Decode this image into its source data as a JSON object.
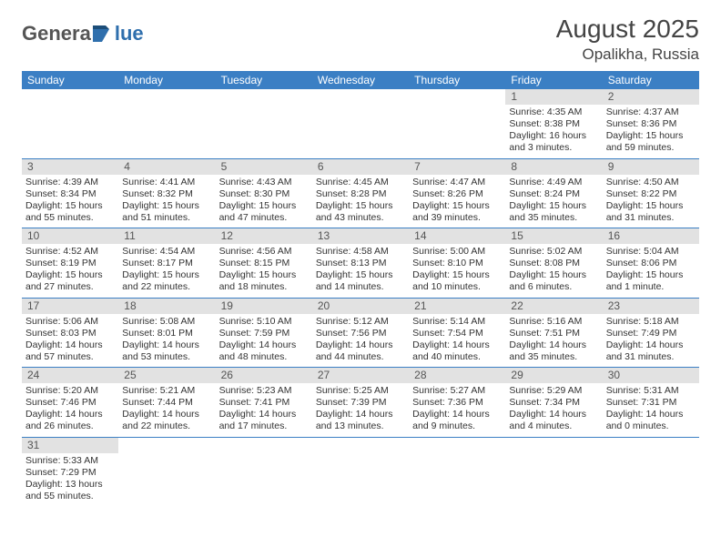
{
  "logo": {
    "text1": "Genera",
    "text2": "lue",
    "shape_color": "#2f6fad"
  },
  "title": {
    "month": "August 2025",
    "location": "Opalikha, Russia"
  },
  "colors": {
    "header_bg": "#3b7fc4",
    "header_fg": "#ffffff",
    "daynum_bg": "#e2e2e2",
    "daynum_fg": "#555555",
    "border": "#3b7fc4",
    "text": "#333333"
  },
  "weekdays": [
    "Sunday",
    "Monday",
    "Tuesday",
    "Wednesday",
    "Thursday",
    "Friday",
    "Saturday"
  ],
  "weeks": [
    [
      null,
      null,
      null,
      null,
      null,
      {
        "n": "1",
        "sunrise": "Sunrise: 4:35 AM",
        "sunset": "Sunset: 8:38 PM",
        "daylight": "Daylight: 16 hours and 3 minutes."
      },
      {
        "n": "2",
        "sunrise": "Sunrise: 4:37 AM",
        "sunset": "Sunset: 8:36 PM",
        "daylight": "Daylight: 15 hours and 59 minutes."
      }
    ],
    [
      {
        "n": "3",
        "sunrise": "Sunrise: 4:39 AM",
        "sunset": "Sunset: 8:34 PM",
        "daylight": "Daylight: 15 hours and 55 minutes."
      },
      {
        "n": "4",
        "sunrise": "Sunrise: 4:41 AM",
        "sunset": "Sunset: 8:32 PM",
        "daylight": "Daylight: 15 hours and 51 minutes."
      },
      {
        "n": "5",
        "sunrise": "Sunrise: 4:43 AM",
        "sunset": "Sunset: 8:30 PM",
        "daylight": "Daylight: 15 hours and 47 minutes."
      },
      {
        "n": "6",
        "sunrise": "Sunrise: 4:45 AM",
        "sunset": "Sunset: 8:28 PM",
        "daylight": "Daylight: 15 hours and 43 minutes."
      },
      {
        "n": "7",
        "sunrise": "Sunrise: 4:47 AM",
        "sunset": "Sunset: 8:26 PM",
        "daylight": "Daylight: 15 hours and 39 minutes."
      },
      {
        "n": "8",
        "sunrise": "Sunrise: 4:49 AM",
        "sunset": "Sunset: 8:24 PM",
        "daylight": "Daylight: 15 hours and 35 minutes."
      },
      {
        "n": "9",
        "sunrise": "Sunrise: 4:50 AM",
        "sunset": "Sunset: 8:22 PM",
        "daylight": "Daylight: 15 hours and 31 minutes."
      }
    ],
    [
      {
        "n": "10",
        "sunrise": "Sunrise: 4:52 AM",
        "sunset": "Sunset: 8:19 PM",
        "daylight": "Daylight: 15 hours and 27 minutes."
      },
      {
        "n": "11",
        "sunrise": "Sunrise: 4:54 AM",
        "sunset": "Sunset: 8:17 PM",
        "daylight": "Daylight: 15 hours and 22 minutes."
      },
      {
        "n": "12",
        "sunrise": "Sunrise: 4:56 AM",
        "sunset": "Sunset: 8:15 PM",
        "daylight": "Daylight: 15 hours and 18 minutes."
      },
      {
        "n": "13",
        "sunrise": "Sunrise: 4:58 AM",
        "sunset": "Sunset: 8:13 PM",
        "daylight": "Daylight: 15 hours and 14 minutes."
      },
      {
        "n": "14",
        "sunrise": "Sunrise: 5:00 AM",
        "sunset": "Sunset: 8:10 PM",
        "daylight": "Daylight: 15 hours and 10 minutes."
      },
      {
        "n": "15",
        "sunrise": "Sunrise: 5:02 AM",
        "sunset": "Sunset: 8:08 PM",
        "daylight": "Daylight: 15 hours and 6 minutes."
      },
      {
        "n": "16",
        "sunrise": "Sunrise: 5:04 AM",
        "sunset": "Sunset: 8:06 PM",
        "daylight": "Daylight: 15 hours and 1 minute."
      }
    ],
    [
      {
        "n": "17",
        "sunrise": "Sunrise: 5:06 AM",
        "sunset": "Sunset: 8:03 PM",
        "daylight": "Daylight: 14 hours and 57 minutes."
      },
      {
        "n": "18",
        "sunrise": "Sunrise: 5:08 AM",
        "sunset": "Sunset: 8:01 PM",
        "daylight": "Daylight: 14 hours and 53 minutes."
      },
      {
        "n": "19",
        "sunrise": "Sunrise: 5:10 AM",
        "sunset": "Sunset: 7:59 PM",
        "daylight": "Daylight: 14 hours and 48 minutes."
      },
      {
        "n": "20",
        "sunrise": "Sunrise: 5:12 AM",
        "sunset": "Sunset: 7:56 PM",
        "daylight": "Daylight: 14 hours and 44 minutes."
      },
      {
        "n": "21",
        "sunrise": "Sunrise: 5:14 AM",
        "sunset": "Sunset: 7:54 PM",
        "daylight": "Daylight: 14 hours and 40 minutes."
      },
      {
        "n": "22",
        "sunrise": "Sunrise: 5:16 AM",
        "sunset": "Sunset: 7:51 PM",
        "daylight": "Daylight: 14 hours and 35 minutes."
      },
      {
        "n": "23",
        "sunrise": "Sunrise: 5:18 AM",
        "sunset": "Sunset: 7:49 PM",
        "daylight": "Daylight: 14 hours and 31 minutes."
      }
    ],
    [
      {
        "n": "24",
        "sunrise": "Sunrise: 5:20 AM",
        "sunset": "Sunset: 7:46 PM",
        "daylight": "Daylight: 14 hours and 26 minutes."
      },
      {
        "n": "25",
        "sunrise": "Sunrise: 5:21 AM",
        "sunset": "Sunset: 7:44 PM",
        "daylight": "Daylight: 14 hours and 22 minutes."
      },
      {
        "n": "26",
        "sunrise": "Sunrise: 5:23 AM",
        "sunset": "Sunset: 7:41 PM",
        "daylight": "Daylight: 14 hours and 17 minutes."
      },
      {
        "n": "27",
        "sunrise": "Sunrise: 5:25 AM",
        "sunset": "Sunset: 7:39 PM",
        "daylight": "Daylight: 14 hours and 13 minutes."
      },
      {
        "n": "28",
        "sunrise": "Sunrise: 5:27 AM",
        "sunset": "Sunset: 7:36 PM",
        "daylight": "Daylight: 14 hours and 9 minutes."
      },
      {
        "n": "29",
        "sunrise": "Sunrise: 5:29 AM",
        "sunset": "Sunset: 7:34 PM",
        "daylight": "Daylight: 14 hours and 4 minutes."
      },
      {
        "n": "30",
        "sunrise": "Sunrise: 5:31 AM",
        "sunset": "Sunset: 7:31 PM",
        "daylight": "Daylight: 14 hours and 0 minutes."
      }
    ],
    [
      {
        "n": "31",
        "sunrise": "Sunrise: 5:33 AM",
        "sunset": "Sunset: 7:29 PM",
        "daylight": "Daylight: 13 hours and 55 minutes."
      },
      null,
      null,
      null,
      null,
      null,
      null
    ]
  ]
}
